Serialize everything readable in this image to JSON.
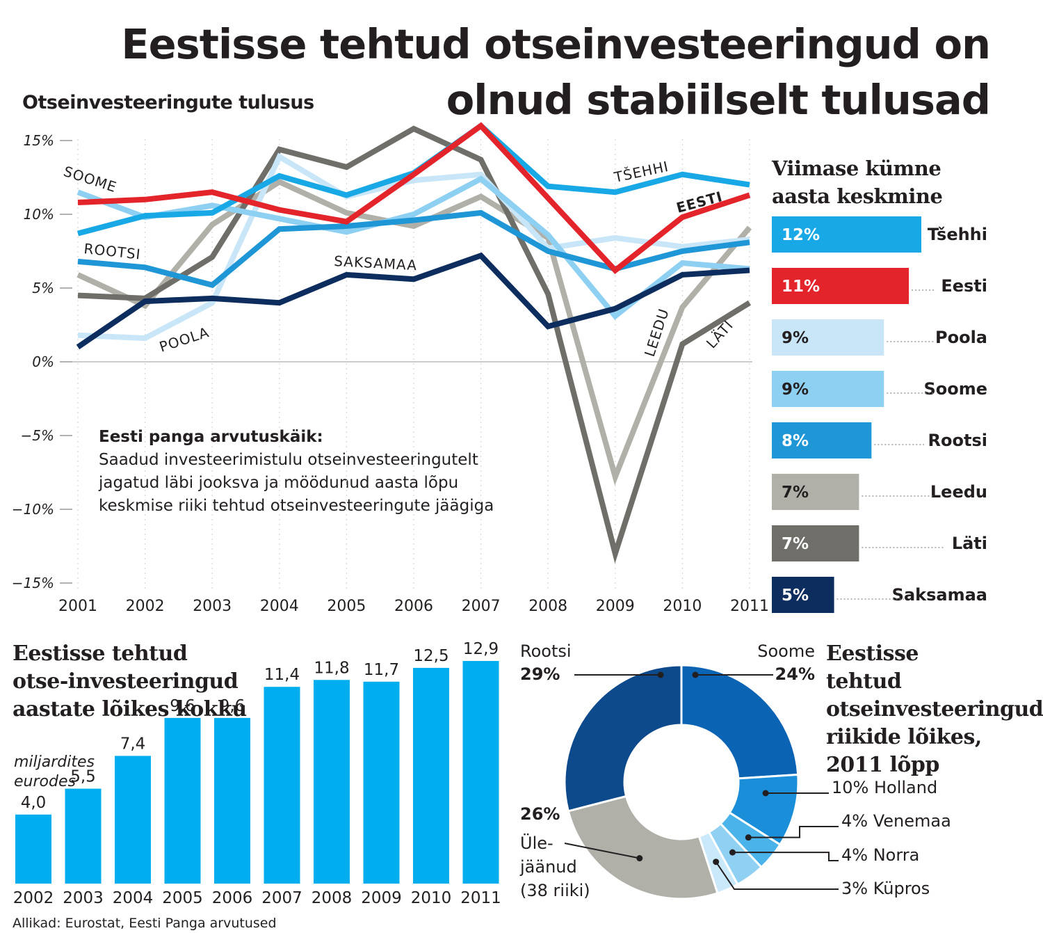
{
  "title": "Eestisse tehtud otseinvesteeringud on olnud stabiilselt tulusad",
  "source": "Allikad: Eurostat, Eesti Panga arvutused",
  "method_note": {
    "title": "Eesti panga arvutuskäik:",
    "lines": [
      "Saadud investeerimistulu otseinvesteeringutelt",
      "jagatud läbi jooksva ja möödunud aasta lõpu",
      "keskmise riiki tehtud otseinvesteeringute jäägiga"
    ]
  },
  "chart_data": [
    {
      "type": "line",
      "title": "Otseinvesteeringute tulusus",
      "x": [
        "2001",
        "2002",
        "2003",
        "2004",
        "2005",
        "2006",
        "2007",
        "2008",
        "2009",
        "2010",
        "2011"
      ],
      "ylim": [
        -15,
        16
      ],
      "yticks": [
        15,
        10,
        5,
        0,
        -5,
        -10,
        -15
      ],
      "ytick_labels": [
        "15%",
        "10%",
        "5%",
        "0%",
        "−5%",
        "−10%",
        "−15%"
      ],
      "series": [
        {
          "name": "Leedu",
          "label": "LEEDU",
          "color": "#b0b0a8",
          "values": [
            5.9,
            3.8,
            9.3,
            12.2,
            10.1,
            9.2,
            11.2,
            8.4,
            -7.8,
            3.7,
            9.1
          ]
        },
        {
          "name": "Läti",
          "label": "LÄTI",
          "color": "#6f6e68",
          "values": [
            4.5,
            4.3,
            7.1,
            14.4,
            13.2,
            15.8,
            13.7,
            4.6,
            -13.0,
            1.2,
            4.0
          ]
        },
        {
          "name": "Poola",
          "label": "POOLA",
          "color": "#c8e6f8",
          "values": [
            1.8,
            1.6,
            4.0,
            13.9,
            11.2,
            12.3,
            12.7,
            7.7,
            8.4,
            7.8,
            8.3
          ]
        },
        {
          "name": "Soome",
          "label": "SOOME",
          "color": "#8ed0f2",
          "values": [
            11.5,
            9.8,
            10.6,
            9.7,
            8.8,
            10.0,
            12.4,
            8.6,
            3.1,
            6.7,
            6.3
          ]
        },
        {
          "name": "Rootsi",
          "label": "ROOTSI",
          "color": "#1f96d6",
          "values": [
            6.8,
            6.4,
            5.2,
            9.0,
            9.2,
            9.6,
            10.1,
            7.5,
            6.3,
            7.5,
            8.1
          ]
        },
        {
          "name": "Tšehhi",
          "label": "TŠEHHI",
          "color": "#19a8e6",
          "values": [
            8.7,
            9.9,
            10.1,
            12.6,
            11.3,
            12.8,
            16.0,
            11.9,
            11.5,
            12.7,
            12.0
          ]
        },
        {
          "name": "Saksamaa",
          "label": "SAKSAMAA",
          "color": "#0d2d5e",
          "values": [
            1.0,
            4.1,
            4.3,
            4.0,
            5.9,
            5.6,
            7.2,
            2.4,
            3.6,
            5.9,
            6.2
          ]
        },
        {
          "name": "Eesti",
          "label": "EESTI",
          "color": "#e3242b",
          "values": [
            10.8,
            11.0,
            11.5,
            10.3,
            9.5,
            12.7,
            16.0,
            11.1,
            6.2,
            9.8,
            11.3
          ]
        }
      ]
    },
    {
      "type": "bar",
      "orientation": "horizontal",
      "title": "Viimase kümne aasta keskmine",
      "categories": [
        "Tšehhi",
        "Eesti",
        "Poola",
        "Soome",
        "Rootsi",
        "Leedu",
        "Läti",
        "Saksamaa"
      ],
      "values": [
        12,
        11,
        9,
        9,
        8,
        7,
        7,
        5
      ],
      "labels": [
        "12%",
        "11%",
        "9%",
        "9%",
        "8%",
        "7%",
        "7%",
        "5%"
      ],
      "colors": [
        "#19a8e6",
        "#e3242b",
        "#c8e6f8",
        "#8ed0f2",
        "#1f96d6",
        "#b0b0a8",
        "#6f6e68",
        "#0d2d5e"
      ],
      "label_colors": [
        "#ffffff",
        "#ffffff",
        "#231f20",
        "#231f20",
        "#ffffff",
        "#231f20",
        "#ffffff",
        "#ffffff"
      ]
    },
    {
      "type": "bar",
      "title": "Eestisse tehtud otse-investeeringud aastate lõikes kokku",
      "ylabel": "miljardites eurodes",
      "categories": [
        "2002",
        "2003",
        "2004",
        "2005",
        "2006",
        "2007",
        "2008",
        "2009",
        "2010",
        "2011"
      ],
      "values": [
        4.0,
        5.5,
        7.4,
        9.6,
        9.6,
        11.4,
        11.8,
        11.7,
        12.5,
        12.9
      ],
      "labels": [
        "4,0",
        "5,5",
        "7,4",
        "9,6",
        "9,6",
        "11,4",
        "11,8",
        "11,7",
        "12,5",
        "12,9"
      ],
      "color": "#00aeef",
      "ylim": [
        0,
        13
      ]
    },
    {
      "type": "pie",
      "style": "donut",
      "title": "Eestisse tehtud otseinvesteeringud riikide lõikes, 2011 lõpp",
      "slices": [
        {
          "name": "Soome",
          "value": 24,
          "label": "24%",
          "color": "#0b63b4"
        },
        {
          "name": "Holland",
          "value": 10,
          "label": "10% Holland",
          "color": "#1a8ed8"
        },
        {
          "name": "Venemaa",
          "value": 4,
          "label": "4% Venemaa",
          "color": "#4ab3ea"
        },
        {
          "name": "Norra",
          "value": 4,
          "label": "4% Norra",
          "color": "#8fd0f3"
        },
        {
          "name": "Küpros",
          "value": 3,
          "label": "3% Küpros",
          "color": "#c9e8f9"
        },
        {
          "name": "Ülejäänud (38 riiki)",
          "value": 26,
          "label": "26%",
          "color": "#b0b0a8"
        },
        {
          "name": "Rootsi",
          "value": 29,
          "label": "29%",
          "color": "#0d4a8c"
        }
      ],
      "text": {
        "rootsi_name": "Rootsi",
        "soome_name": "Soome",
        "rest_line1": "Üle-",
        "rest_line2": "jäänud",
        "rest_line3": "(38 riiki)"
      }
    }
  ]
}
